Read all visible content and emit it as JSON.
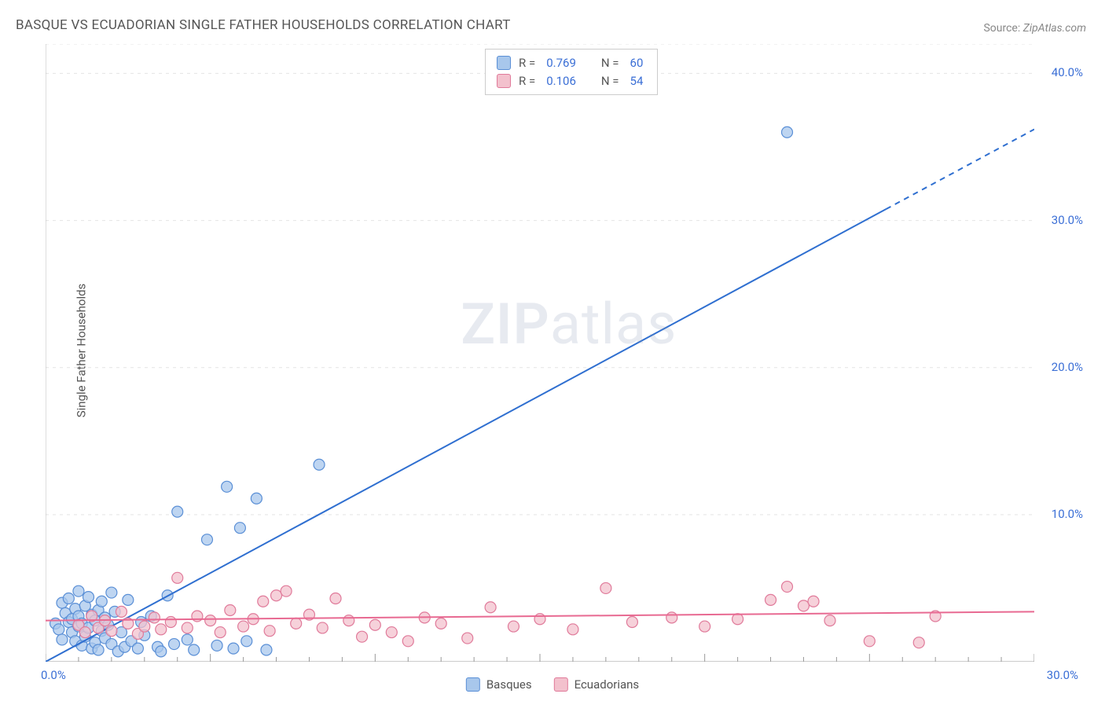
{
  "title": "BASQUE VS ECUADORIAN SINGLE FATHER HOUSEHOLDS CORRELATION CHART",
  "source_label": "Source:",
  "source_value": "ZipAtlas.com",
  "ylabel": "Single Father Households",
  "watermark_a": "ZIP",
  "watermark_b": "atlas",
  "chart": {
    "type": "scatter",
    "xlim": [
      0,
      30
    ],
    "ylim": [
      0,
      42
    ],
    "x_ticks_major": [
      0,
      5,
      10,
      15,
      20,
      25,
      30
    ],
    "x_ticks_labeled": [
      0,
      30
    ],
    "x_tick_labels": [
      "0.0%",
      "30.0%"
    ],
    "y_ticks_major": [
      10,
      20,
      30,
      40
    ],
    "y_tick_labels": [
      "10.0%",
      "20.0%",
      "30.0%",
      "40.0%"
    ],
    "grid_color": "#e4e4e4",
    "grid_dash": "4,5",
    "axis_color": "#bbbbbb",
    "tick_color": "#999999",
    "background_color": "#ffffff",
    "series": [
      {
        "name": "Basques",
        "marker_fill": "#a8c7ec",
        "marker_stroke": "#5a8fd6",
        "marker_opacity": 0.75,
        "marker_radius": 7,
        "line_color": "#2f6fd0",
        "line_width": 2,
        "trend": {
          "x1": 0,
          "y1": 0,
          "x2": 30,
          "y2": 36.2,
          "dash_from_x": 25.5
        },
        "R": 0.769,
        "N": 60,
        "points": [
          [
            0.3,
            2.6
          ],
          [
            0.4,
            2.2
          ],
          [
            0.5,
            4.0
          ],
          [
            0.5,
            1.5
          ],
          [
            0.6,
            3.3
          ],
          [
            0.7,
            2.7
          ],
          [
            0.7,
            4.3
          ],
          [
            0.8,
            2.0
          ],
          [
            0.8,
            2.9
          ],
          [
            0.9,
            3.6
          ],
          [
            0.9,
            1.4
          ],
          [
            1.0,
            4.8
          ],
          [
            1.0,
            2.4
          ],
          [
            1.0,
            3.1
          ],
          [
            1.1,
            1.1
          ],
          [
            1.1,
            2.6
          ],
          [
            1.2,
            3.8
          ],
          [
            1.2,
            1.7
          ],
          [
            1.3,
            4.4
          ],
          [
            1.3,
            2.3
          ],
          [
            1.4,
            3.2
          ],
          [
            1.4,
            0.9
          ],
          [
            1.5,
            2.8
          ],
          [
            1.5,
            1.3
          ],
          [
            1.6,
            3.5
          ],
          [
            1.6,
            0.8
          ],
          [
            1.7,
            4.1
          ],
          [
            1.7,
            2.1
          ],
          [
            1.8,
            1.6
          ],
          [
            1.8,
            3.0
          ],
          [
            1.9,
            2.5
          ],
          [
            2.0,
            4.7
          ],
          [
            2.0,
            1.2
          ],
          [
            2.1,
            3.4
          ],
          [
            2.2,
            0.7
          ],
          [
            2.3,
            2.0
          ],
          [
            2.4,
            1.0
          ],
          [
            2.5,
            4.2
          ],
          [
            2.6,
            1.4
          ],
          [
            2.8,
            0.9
          ],
          [
            2.9,
            2.7
          ],
          [
            3.0,
            1.8
          ],
          [
            3.2,
            3.1
          ],
          [
            3.4,
            1.0
          ],
          [
            3.5,
            0.7
          ],
          [
            3.7,
            4.5
          ],
          [
            3.9,
            1.2
          ],
          [
            4.0,
            10.2
          ],
          [
            4.3,
            1.5
          ],
          [
            4.5,
            0.8
          ],
          [
            4.9,
            8.3
          ],
          [
            5.2,
            1.1
          ],
          [
            5.5,
            11.9
          ],
          [
            5.7,
            0.9
          ],
          [
            5.9,
            9.1
          ],
          [
            6.1,
            1.4
          ],
          [
            6.4,
            11.1
          ],
          [
            6.7,
            0.8
          ],
          [
            8.3,
            13.4
          ],
          [
            22.5,
            36.0
          ]
        ]
      },
      {
        "name": "Ecuadorians",
        "marker_fill": "#f3c1cd",
        "marker_stroke": "#e07a9a",
        "marker_opacity": 0.75,
        "marker_radius": 7,
        "line_color": "#e86a92",
        "line_width": 2,
        "trend": {
          "x1": 0,
          "y1": 2.8,
          "x2": 30,
          "y2": 3.4
        },
        "R": 0.106,
        "N": 54,
        "points": [
          [
            1.0,
            2.5
          ],
          [
            1.2,
            2.0
          ],
          [
            1.4,
            3.1
          ],
          [
            1.6,
            2.3
          ],
          [
            1.8,
            2.8
          ],
          [
            2.0,
            2.1
          ],
          [
            2.3,
            3.4
          ],
          [
            2.5,
            2.6
          ],
          [
            2.8,
            1.9
          ],
          [
            3.0,
            2.4
          ],
          [
            3.3,
            3.0
          ],
          [
            3.5,
            2.2
          ],
          [
            3.8,
            2.7
          ],
          [
            4.0,
            5.7
          ],
          [
            4.3,
            2.3
          ],
          [
            4.6,
            3.1
          ],
          [
            5.0,
            2.8
          ],
          [
            5.3,
            2.0
          ],
          [
            5.6,
            3.5
          ],
          [
            6.0,
            2.4
          ],
          [
            6.3,
            2.9
          ],
          [
            6.6,
            4.1
          ],
          [
            6.8,
            2.1
          ],
          [
            7.0,
            4.5
          ],
          [
            7.3,
            4.8
          ],
          [
            7.6,
            2.6
          ],
          [
            8.0,
            3.2
          ],
          [
            8.4,
            2.3
          ],
          [
            8.8,
            4.3
          ],
          [
            9.2,
            2.8
          ],
          [
            9.6,
            1.7
          ],
          [
            10.0,
            2.5
          ],
          [
            10.5,
            2.0
          ],
          [
            11.0,
            1.4
          ],
          [
            11.5,
            3.0
          ],
          [
            12.0,
            2.6
          ],
          [
            12.8,
            1.6
          ],
          [
            13.5,
            3.7
          ],
          [
            14.2,
            2.4
          ],
          [
            15.0,
            2.9
          ],
          [
            16.0,
            2.2
          ],
          [
            17.0,
            5.0
          ],
          [
            17.8,
            2.7
          ],
          [
            19.0,
            3.0
          ],
          [
            20.0,
            2.4
          ],
          [
            21.0,
            2.9
          ],
          [
            22.0,
            4.2
          ],
          [
            22.5,
            5.1
          ],
          [
            23.0,
            3.8
          ],
          [
            23.3,
            4.1
          ],
          [
            23.8,
            2.8
          ],
          [
            25.0,
            1.4
          ],
          [
            26.5,
            1.3
          ],
          [
            27.0,
            3.1
          ]
        ]
      }
    ],
    "legend_top": {
      "rows": [
        {
          "swatch_fill": "#a8c7ec",
          "swatch_stroke": "#5a8fd6",
          "r_label": "R =",
          "r_val": "0.769",
          "n_label": "N =",
          "n_val": "60"
        },
        {
          "swatch_fill": "#f3c1cd",
          "swatch_stroke": "#e07a9a",
          "r_label": "R =",
          "r_val": "0.106",
          "n_label": "N =",
          "n_val": "54"
        }
      ]
    },
    "legend_bottom": [
      {
        "swatch_fill": "#a8c7ec",
        "swatch_stroke": "#5a8fd6",
        "label": "Basques"
      },
      {
        "swatch_fill": "#f3c1cd",
        "swatch_stroke": "#e07a9a",
        "label": "Ecuadorians"
      }
    ]
  }
}
